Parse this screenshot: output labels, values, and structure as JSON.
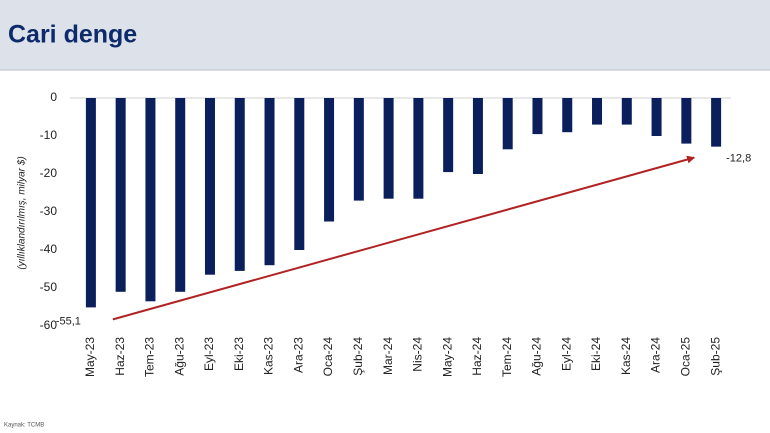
{
  "chart_data": {
    "type": "bar",
    "title": "Cari denge",
    "y_label": "(yıllıklandırılmış, milyar $)",
    "source": "Kaynak: TCMB",
    "categories": [
      "May-23",
      "Haz-23",
      "Tem-23",
      "Ağu-23",
      "Eyl-23",
      "Eki-23",
      "Kas-23",
      "Ara-23",
      "Oca-24",
      "Şub-24",
      "Mar-24",
      "Nis-24",
      "May-24",
      "Haz-24",
      "Tem-24",
      "Ağu-24",
      "Eyl-24",
      "Eki-24",
      "Kas-24",
      "Ara-24",
      "Oca-25",
      "Şub-25"
    ],
    "values": [
      -55.1,
      -51,
      -53.5,
      -51,
      -46.5,
      -45.5,
      -44,
      -40,
      -32.5,
      -27,
      -26.5,
      -26.5,
      -19.5,
      -20,
      -13.5,
      -9.5,
      -9,
      -7,
      -7,
      -10,
      -12,
      -12.8
    ],
    "value_labels": [
      "-55,1",
      null,
      null,
      null,
      null,
      null,
      null,
      null,
      null,
      null,
      null,
      null,
      null,
      null,
      null,
      null,
      null,
      null,
      null,
      null,
      null,
      "-12,8"
    ],
    "color": "#0a1f5c",
    "trend_color": "#b22222",
    "ylim": [
      -60,
      0
    ],
    "yticks": [
      0,
      -10,
      -20,
      -30,
      -40,
      -50,
      -60
    ],
    "grid": false
  }
}
